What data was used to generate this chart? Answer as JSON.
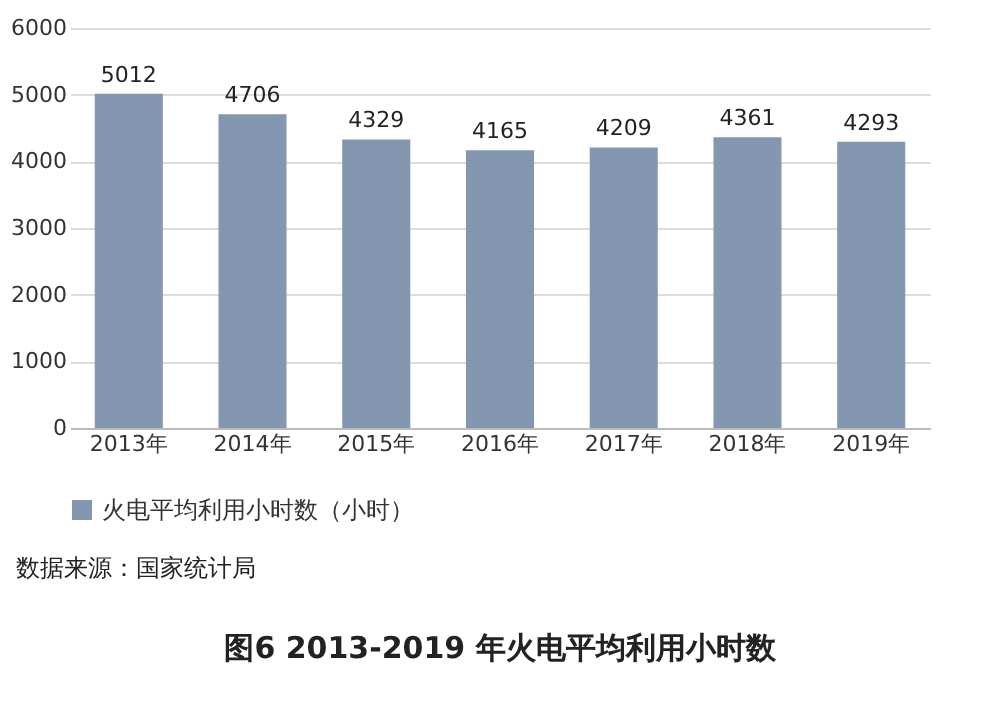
{
  "chart_data": {
    "type": "bar",
    "categories": [
      "2013年",
      "2014年",
      "2015年",
      "2016年",
      "2017年",
      "2018年",
      "2019年"
    ],
    "series": [
      {
        "name": "火电平均利用小时数（小时）",
        "color": "#8497b0",
        "values": [
          5012,
          4706,
          4329,
          4165,
          4209,
          4361,
          4293
        ]
      }
    ],
    "ylim": [
      0,
      6000
    ],
    "yticks": [
      0,
      1000,
      2000,
      3000,
      4000,
      5000,
      6000
    ],
    "grid": "y",
    "legend": "bottom",
    "data_labels": true,
    "annotations": [
      "数据来源：国家统计局",
      "图6 2013-2019 年火电平均利用小时数"
    ]
  }
}
